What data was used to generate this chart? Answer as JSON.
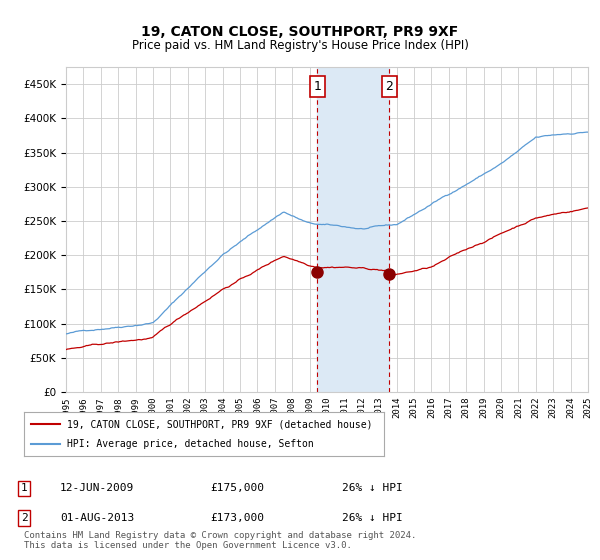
{
  "title": "19, CATON CLOSE, SOUTHPORT, PR9 9XF",
  "subtitle": "Price paid vs. HM Land Registry's House Price Index (HPI)",
  "x_start_year": 1995,
  "x_end_year": 2025,
  "ylim": [
    0,
    475000
  ],
  "yticks": [
    0,
    50000,
    100000,
    150000,
    200000,
    250000,
    300000,
    350000,
    400000,
    450000
  ],
  "hpi_color": "#5b9bd5",
  "price_color": "#c00000",
  "marker_color": "#8B0000",
  "sale1_date_num": 2009.45,
  "sale1_price": 175000,
  "sale2_date_num": 2013.58,
  "sale2_price": 173000,
  "annotation1_label": "1",
  "annotation2_label": "2",
  "legend_line1": "19, CATON CLOSE, SOUTHPORT, PR9 9XF (detached house)",
  "legend_line2": "HPI: Average price, detached house, Sefton",
  "table_row1_num": "1",
  "table_row1_date": "12-JUN-2009",
  "table_row1_price": "£175,000",
  "table_row1_hpi": "26% ↓ HPI",
  "table_row2_num": "2",
  "table_row2_date": "01-AUG-2013",
  "table_row2_price": "£173,000",
  "table_row2_hpi": "26% ↓ HPI",
  "footnote": "Contains HM Land Registry data © Crown copyright and database right 2024.\nThis data is licensed under the Open Government Licence v3.0.",
  "background_color": "#ffffff",
  "grid_color": "#cccccc",
  "shaded_region_color": "#dce9f5"
}
